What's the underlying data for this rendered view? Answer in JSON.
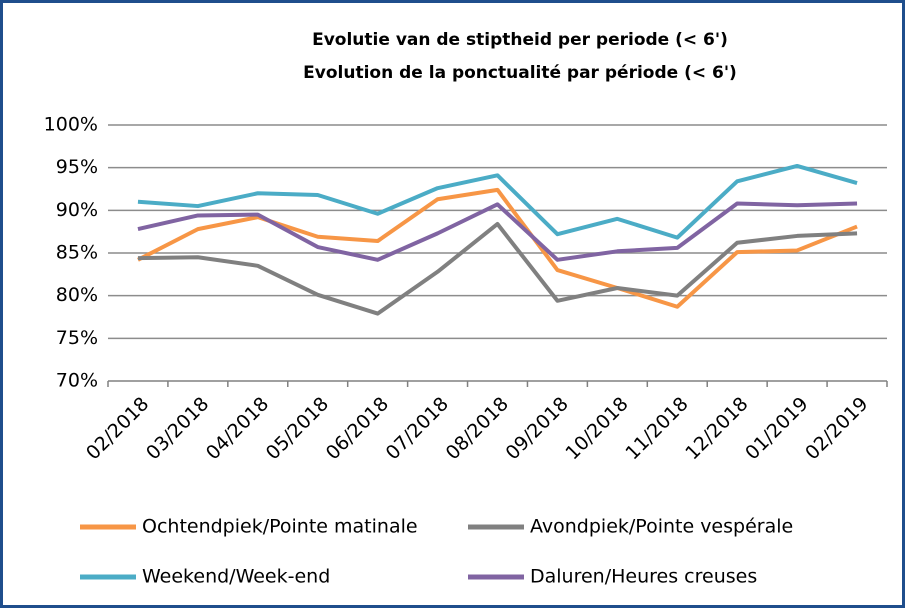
{
  "chart_data": {
    "type": "line",
    "title": "Evolutie van de stiptheid per periode (< 6')",
    "subtitle": "Evolution de la ponctualité par période (< 6')",
    "categories": [
      "02/2018",
      "03/2018",
      "04/2018",
      "05/2018",
      "06/2018",
      "07/2018",
      "08/2018",
      "09/2018",
      "10/2018",
      "11/2018",
      "12/2018",
      "01/2019",
      "02/2019"
    ],
    "series": [
      {
        "name": "Ochtendpiek/Pointe matinale",
        "color": "#f79646",
        "values": [
          84.2,
          87.8,
          89.2,
          86.9,
          86.4,
          91.3,
          92.4,
          83.0,
          80.9,
          78.7,
          85.1,
          85.3,
          88.1
        ]
      },
      {
        "name": "Avondpiek/Pointe vespérale",
        "color": "#808080",
        "values": [
          84.4,
          84.5,
          83.5,
          80.1,
          77.9,
          82.8,
          88.4,
          79.4,
          80.9,
          80.0,
          86.2,
          87.0,
          87.3
        ]
      },
      {
        "name": "Weekend/Week-end",
        "color": "#4bacc6",
        "values": [
          91.0,
          90.5,
          92.0,
          91.8,
          89.6,
          92.6,
          94.1,
          87.2,
          89.0,
          86.8,
          93.4,
          95.2,
          93.2
        ]
      },
      {
        "name": "Daluren/Heures creuses",
        "color": "#8064a2",
        "values": [
          87.8,
          89.4,
          89.5,
          85.7,
          84.2,
          87.3,
          90.7,
          84.2,
          85.2,
          85.6,
          90.8,
          90.6,
          90.8
        ]
      }
    ],
    "ylim": [
      70,
      100
    ],
    "yticks": [
      {
        "value": 70,
        "label": "70%"
      },
      {
        "value": 75,
        "label": "75%"
      },
      {
        "value": 80,
        "label": "80%"
      },
      {
        "value": 85,
        "label": "85%"
      },
      {
        "value": 90,
        "label": "90%"
      },
      {
        "value": 95,
        "label": "95%"
      },
      {
        "value": 100,
        "label": "100%"
      }
    ],
    "grid": true
  }
}
